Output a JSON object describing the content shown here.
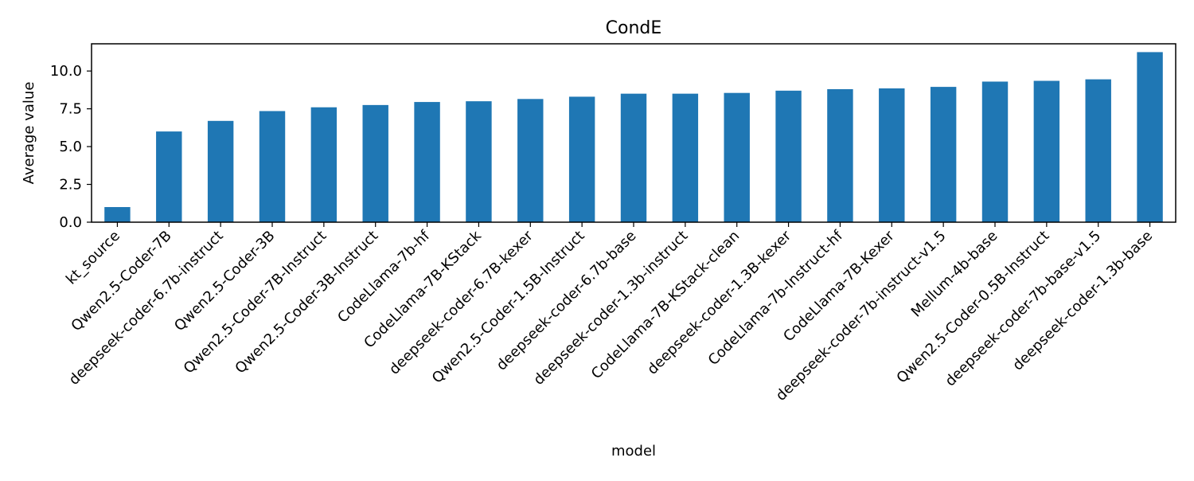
{
  "chart_data": {
    "type": "bar",
    "title": "CondE",
    "xlabel": "model",
    "ylabel": "Average value",
    "categories": [
      "kt_source",
      "Qwen2.5-Coder-7B",
      "deepseek-coder-6.7b-instruct",
      "Qwen2.5-Coder-3B",
      "Qwen2.5-Coder-7B-Instruct",
      "Qwen2.5-Coder-3B-Instruct",
      "CodeLlama-7b-hf",
      "CodeLlama-7B-KStack",
      "deepseek-coder-6.7B-kexer",
      "Qwen2.5-Coder-1.5B-Instruct",
      "deepseek-coder-6.7b-base",
      "deepseek-coder-1.3b-instruct",
      "CodeLlama-7B-KStack-clean",
      "deepseek-coder-1.3B-kexer",
      "CodeLlama-7b-Instruct-hf",
      "CodeLlama-7B-Kexer",
      "deepseek-coder-7b-instruct-v1.5",
      "Mellum-4b-base",
      "Qwen2.5-Coder-0.5B-Instruct",
      "deepseek-coder-7b-base-v1.5",
      "deepseek-coder-1.3b-base"
    ],
    "values": [
      1.0,
      6.0,
      6.7,
      7.35,
      7.6,
      7.75,
      7.95,
      8.0,
      8.15,
      8.3,
      8.5,
      8.5,
      8.55,
      8.7,
      8.8,
      8.85,
      8.95,
      9.3,
      9.35,
      9.45,
      11.25
    ],
    "ylim": [
      0,
      11.8
    ],
    "yticks": [
      0.0,
      2.5,
      5.0,
      7.5,
      10.0
    ],
    "ytick_labels": [
      "0.0",
      "2.5",
      "5.0",
      "7.5",
      "10.0"
    ],
    "grid": false,
    "legend": "none",
    "bar_color": "#1f77b4"
  }
}
